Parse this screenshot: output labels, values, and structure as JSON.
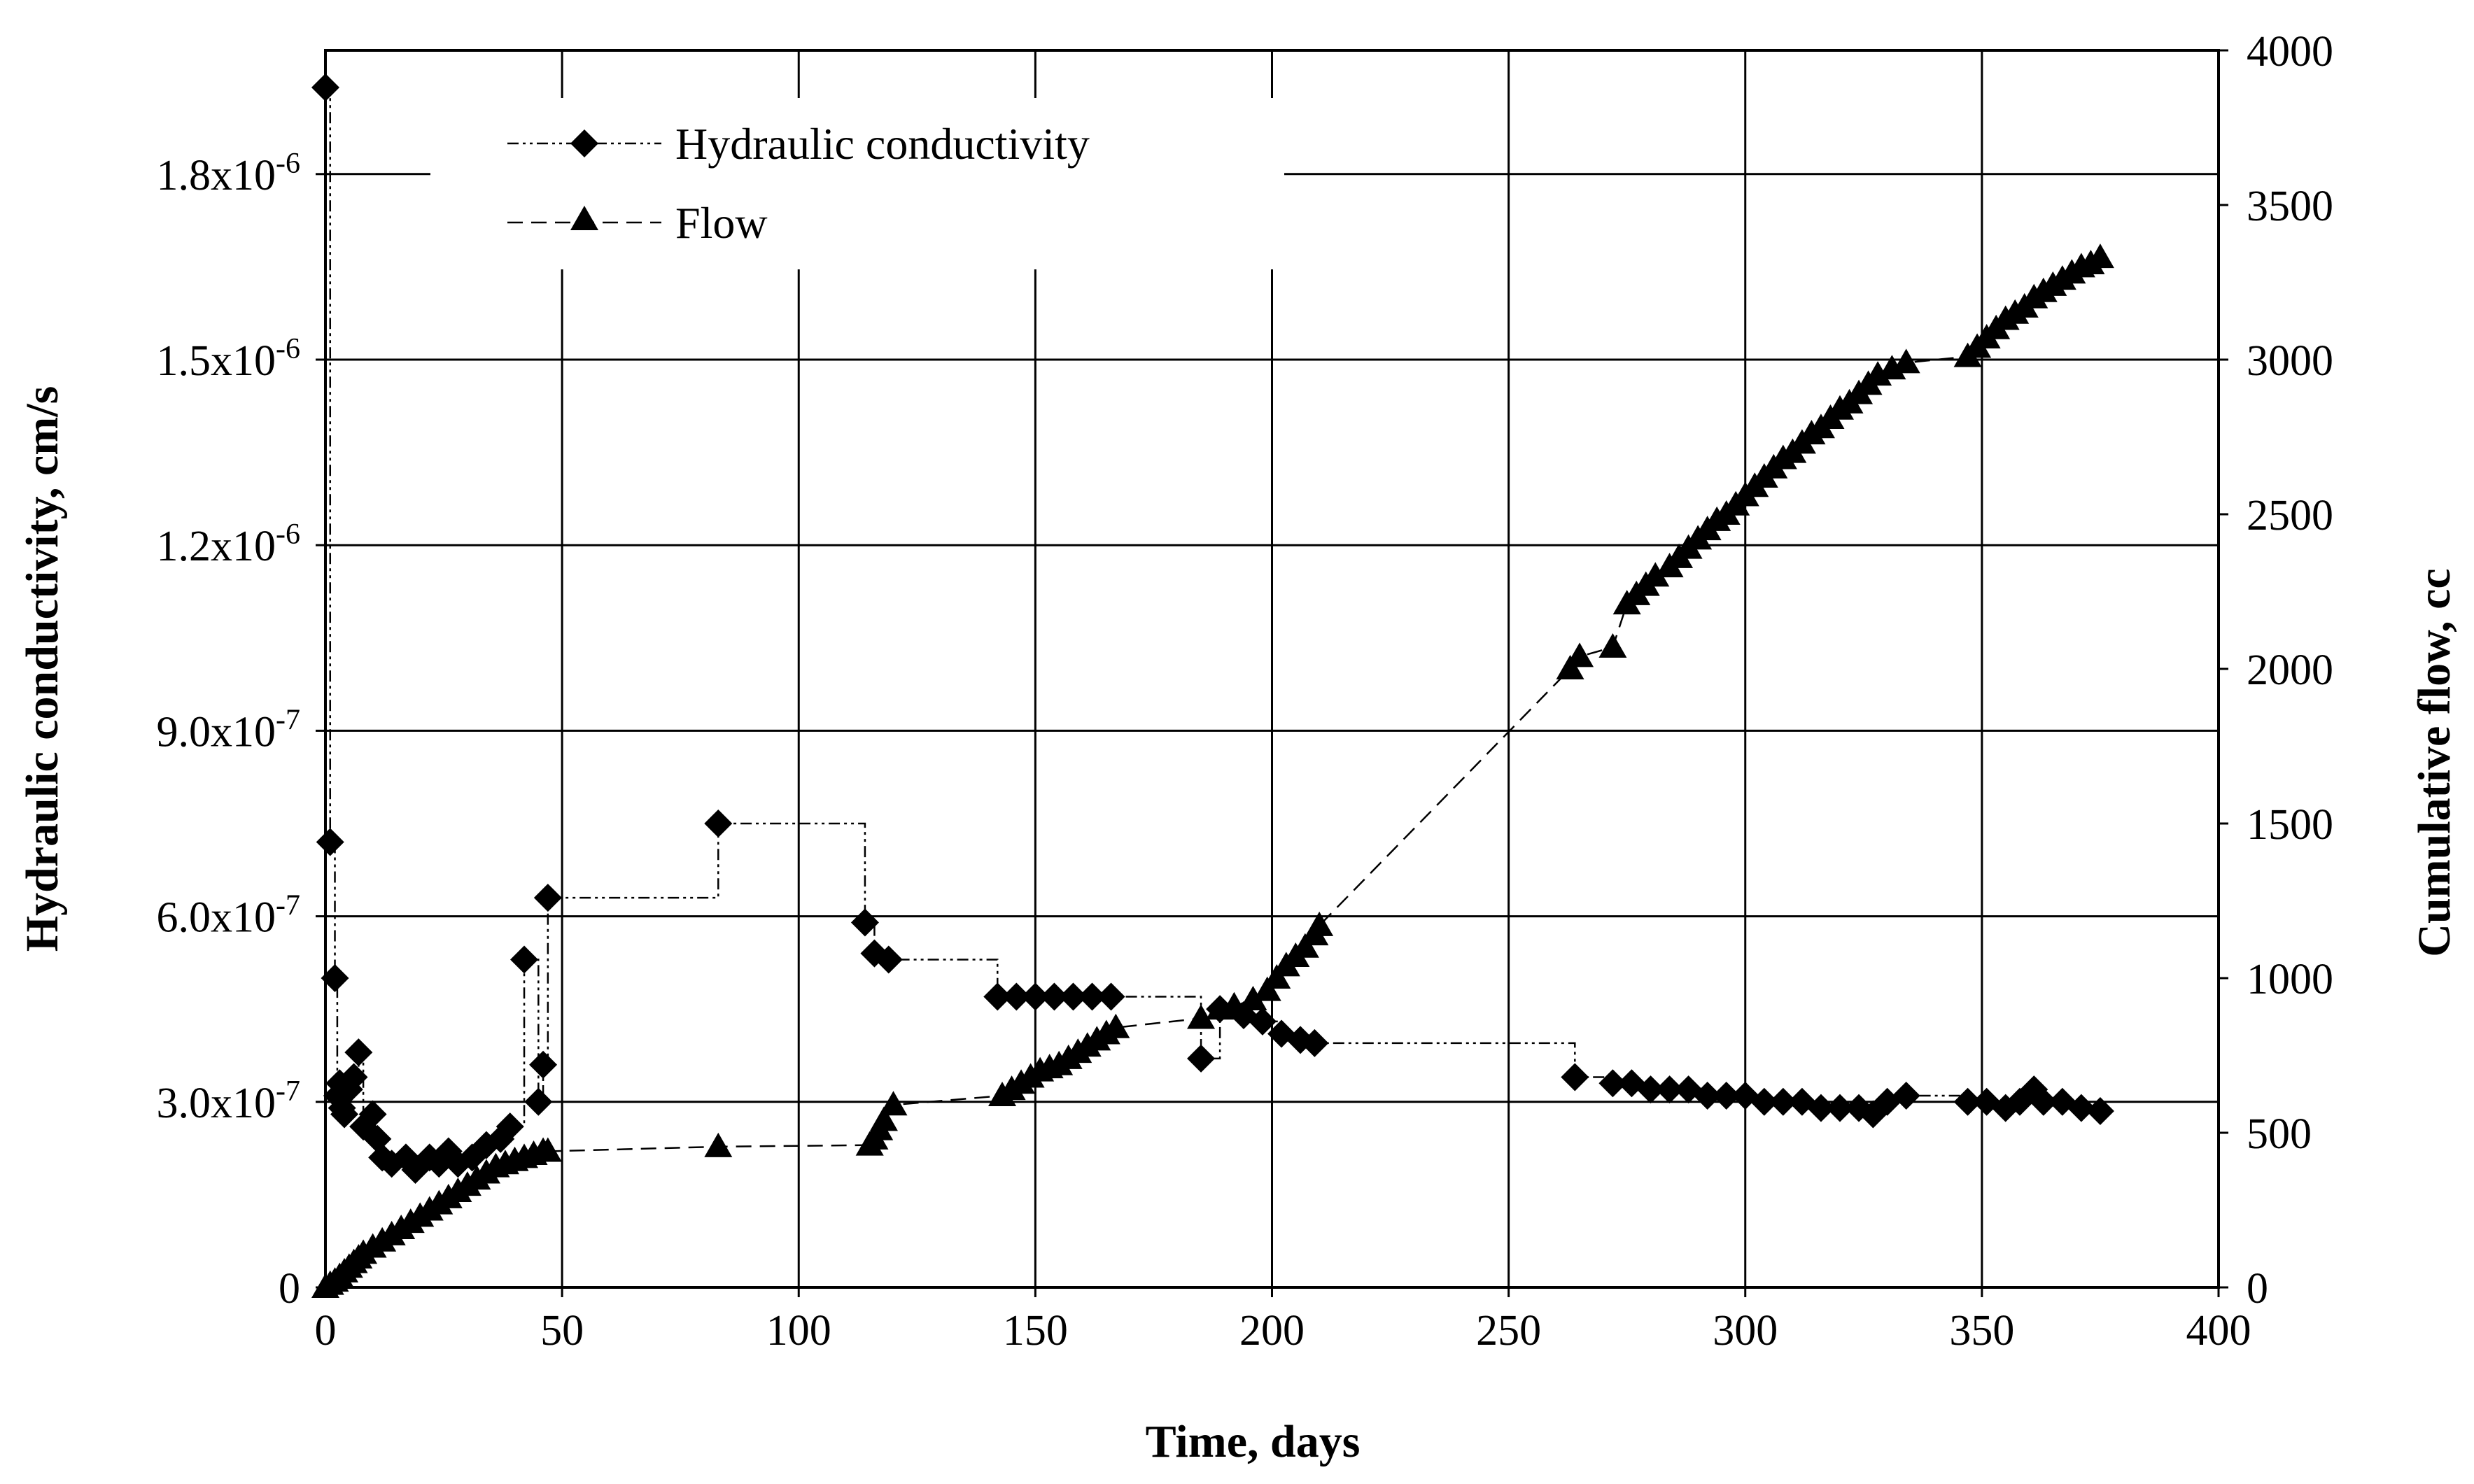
{
  "chart_data": {
    "type": "scatter",
    "title": "",
    "xlabel": "Time, days",
    "ylabel": "Hydraulic conductivity, cm/s",
    "y2label": "Cumulative flow, cc",
    "xlim": [
      0,
      400
    ],
    "ylim": [
      0,
      2e-06
    ],
    "y2lim": [
      0,
      4000
    ],
    "grid": true,
    "legend_position": "top-left",
    "x_ticks": [
      {
        "value": 0,
        "label": "0"
      },
      {
        "value": 50,
        "label": "50"
      },
      {
        "value": 100,
        "label": "100"
      },
      {
        "value": 150,
        "label": "150"
      },
      {
        "value": 200,
        "label": "200"
      },
      {
        "value": 250,
        "label": "250"
      },
      {
        "value": 300,
        "label": "300"
      },
      {
        "value": 350,
        "label": "350"
      },
      {
        "value": 400,
        "label": "400"
      }
    ],
    "y_ticks": [
      {
        "value": 0,
        "label": "0",
        "mantissa": "0",
        "exp": ""
      },
      {
        "value": 3e-07,
        "label": "3.0x10-7",
        "mantissa": "3.0x10",
        "exp": "-7"
      },
      {
        "value": 6e-07,
        "label": "6.0x10-7",
        "mantissa": "6.0x10",
        "exp": "-7"
      },
      {
        "value": 9e-07,
        "label": "9.0x10-7",
        "mantissa": "9.0x10",
        "exp": "-7"
      },
      {
        "value": 1.2e-06,
        "label": "1.2x10-6",
        "mantissa": "1.2x10",
        "exp": "-6"
      },
      {
        "value": 1.5e-06,
        "label": "1.5x10-6",
        "mantissa": "1.5x10",
        "exp": "-6"
      },
      {
        "value": 1.8e-06,
        "label": "1.8x10-6",
        "mantissa": "1.8x10",
        "exp": "-6"
      }
    ],
    "y2_ticks": [
      {
        "value": 0,
        "label": "0"
      },
      {
        "value": 500,
        "label": "500"
      },
      {
        "value": 1000,
        "label": "1000"
      },
      {
        "value": 1500,
        "label": "1500"
      },
      {
        "value": 2000,
        "label": "2000"
      },
      {
        "value": 2500,
        "label": "2500"
      },
      {
        "value": 3000,
        "label": "3000"
      },
      {
        "value": 3500,
        "label": "3500"
      },
      {
        "value": 4000,
        "label": "4000"
      }
    ],
    "series": [
      {
        "name": "Hydraulic conductivity",
        "axis": "left",
        "marker": "diamond",
        "line": "dash-dot-dot step",
        "points": [
          [
            0,
            1.94e-06
          ],
          [
            1,
            7.2e-07
          ],
          [
            2,
            5e-07
          ],
          [
            2.5,
            3.1e-07
          ],
          [
            3,
            3.3e-07
          ],
          [
            3.5,
            2.9e-07
          ],
          [
            4,
            2.8e-07
          ],
          [
            5,
            3.2e-07
          ],
          [
            6,
            3.4e-07
          ],
          [
            7,
            3.8e-07
          ],
          [
            8,
            2.6e-07
          ],
          [
            10,
            2.8e-07
          ],
          [
            11,
            2.4e-07
          ],
          [
            12,
            2.1e-07
          ],
          [
            14,
            2e-07
          ],
          [
            17,
            2.1e-07
          ],
          [
            19,
            1.9e-07
          ],
          [
            22,
            2.1e-07
          ],
          [
            24,
            2e-07
          ],
          [
            26,
            2.2e-07
          ],
          [
            28,
            2e-07
          ],
          [
            31,
            2.1e-07
          ],
          [
            34,
            2.3e-07
          ],
          [
            37,
            2.4e-07
          ],
          [
            39,
            2.6e-07
          ],
          [
            42,
            5.3e-07
          ],
          [
            45,
            3e-07
          ],
          [
            46,
            3.6e-07
          ],
          [
            47,
            6.3e-07
          ],
          [
            83,
            7.5e-07
          ],
          [
            114,
            5.9e-07
          ],
          [
            116,
            5.4e-07
          ],
          [
            119,
            5.3e-07
          ],
          [
            142,
            4.7e-07
          ],
          [
            146,
            4.7e-07
          ],
          [
            150,
            4.7e-07
          ],
          [
            154,
            4.7e-07
          ],
          [
            158,
            4.7e-07
          ],
          [
            162,
            4.7e-07
          ],
          [
            166,
            4.7e-07
          ],
          [
            185,
            3.7e-07
          ],
          [
            189,
            4.5e-07
          ],
          [
            194,
            4.4e-07
          ],
          [
            198,
            4.3e-07
          ],
          [
            202,
            4.1e-07
          ],
          [
            206,
            4e-07
          ],
          [
            209,
            3.95e-07
          ],
          [
            264,
            3.4e-07
          ],
          [
            272,
            3.3e-07
          ],
          [
            276,
            3.3e-07
          ],
          [
            280,
            3.2e-07
          ],
          [
            284,
            3.2e-07
          ],
          [
            288,
            3.2e-07
          ],
          [
            292,
            3.1e-07
          ],
          [
            296,
            3.1e-07
          ],
          [
            300,
            3.1e-07
          ],
          [
            304,
            3e-07
          ],
          [
            308,
            3e-07
          ],
          [
            312,
            3e-07
          ],
          [
            316,
            2.9e-07
          ],
          [
            320,
            2.9e-07
          ],
          [
            324,
            2.9e-07
          ],
          [
            327,
            2.8e-07
          ],
          [
            330,
            3e-07
          ],
          [
            334,
            3.1e-07
          ],
          [
            347,
            3e-07
          ],
          [
            351,
            3e-07
          ],
          [
            355,
            2.9e-07
          ],
          [
            358,
            3e-07
          ],
          [
            361,
            3.2e-07
          ],
          [
            363,
            3e-07
          ],
          [
            367,
            3e-07
          ],
          [
            371,
            2.9e-07
          ],
          [
            375,
            2.85e-07
          ]
        ]
      },
      {
        "name": "Flow",
        "axis": "right",
        "marker": "triangle",
        "line": "dashed",
        "points": [
          [
            0,
            0
          ],
          [
            1,
            10
          ],
          [
            2,
            20
          ],
          [
            3,
            35
          ],
          [
            4,
            50
          ],
          [
            5,
            65
          ],
          [
            6,
            80
          ],
          [
            7,
            95
          ],
          [
            8,
            110
          ],
          [
            10,
            130
          ],
          [
            12,
            150
          ],
          [
            14,
            170
          ],
          [
            16,
            190
          ],
          [
            18,
            210
          ],
          [
            20,
            230
          ],
          [
            22,
            250
          ],
          [
            24,
            270
          ],
          [
            26,
            290
          ],
          [
            28,
            310
          ],
          [
            30,
            330
          ],
          [
            32,
            350
          ],
          [
            34,
            370
          ],
          [
            36,
            390
          ],
          [
            38,
            400
          ],
          [
            40,
            410
          ],
          [
            42,
            420
          ],
          [
            44,
            430
          ],
          [
            46,
            440
          ],
          [
            47,
            440
          ],
          [
            83,
            455
          ],
          [
            115,
            460
          ],
          [
            116,
            480
          ],
          [
            117,
            510
          ],
          [
            118,
            540
          ],
          [
            120,
            590
          ],
          [
            143,
            620
          ],
          [
            145,
            640
          ],
          [
            147,
            660
          ],
          [
            149,
            680
          ],
          [
            151,
            700
          ],
          [
            153,
            710
          ],
          [
            155,
            720
          ],
          [
            157,
            740
          ],
          [
            159,
            760
          ],
          [
            161,
            780
          ],
          [
            163,
            800
          ],
          [
            165,
            820
          ],
          [
            167,
            840
          ],
          [
            185,
            870
          ],
          [
            189,
            900
          ],
          [
            192,
            910
          ],
          [
            196,
            930
          ],
          [
            199,
            960
          ],
          [
            201,
            1000
          ],
          [
            203,
            1040
          ],
          [
            205,
            1070
          ],
          [
            207,
            1100
          ],
          [
            209,
            1140
          ],
          [
            210,
            1170
          ],
          [
            263,
            2000
          ],
          [
            265,
            2040
          ],
          [
            272,
            2070
          ],
          [
            275,
            2210
          ],
          [
            277,
            2240
          ],
          [
            279,
            2270
          ],
          [
            281,
            2300
          ],
          [
            284,
            2330
          ],
          [
            286,
            2360
          ],
          [
            288,
            2390
          ],
          [
            290,
            2420
          ],
          [
            292,
            2450
          ],
          [
            294,
            2480
          ],
          [
            296,
            2500
          ],
          [
            298,
            2530
          ],
          [
            300,
            2560
          ],
          [
            302,
            2590
          ],
          [
            304,
            2620
          ],
          [
            306,
            2650
          ],
          [
            308,
            2680
          ],
          [
            310,
            2700
          ],
          [
            312,
            2730
          ],
          [
            314,
            2760
          ],
          [
            316,
            2780
          ],
          [
            318,
            2810
          ],
          [
            320,
            2840
          ],
          [
            322,
            2860
          ],
          [
            324,
            2890
          ],
          [
            326,
            2920
          ],
          [
            328,
            2950
          ],
          [
            331,
            2970
          ],
          [
            334,
            2990
          ],
          [
            347,
            3010
          ],
          [
            349,
            3040
          ],
          [
            351,
            3070
          ],
          [
            353,
            3100
          ],
          [
            355,
            3130
          ],
          [
            357,
            3150
          ],
          [
            359,
            3170
          ],
          [
            361,
            3200
          ],
          [
            363,
            3220
          ],
          [
            365,
            3240
          ],
          [
            367,
            3260
          ],
          [
            369,
            3280
          ],
          [
            371,
            3300
          ],
          [
            373,
            3310
          ],
          [
            375,
            3330
          ]
        ]
      }
    ]
  }
}
